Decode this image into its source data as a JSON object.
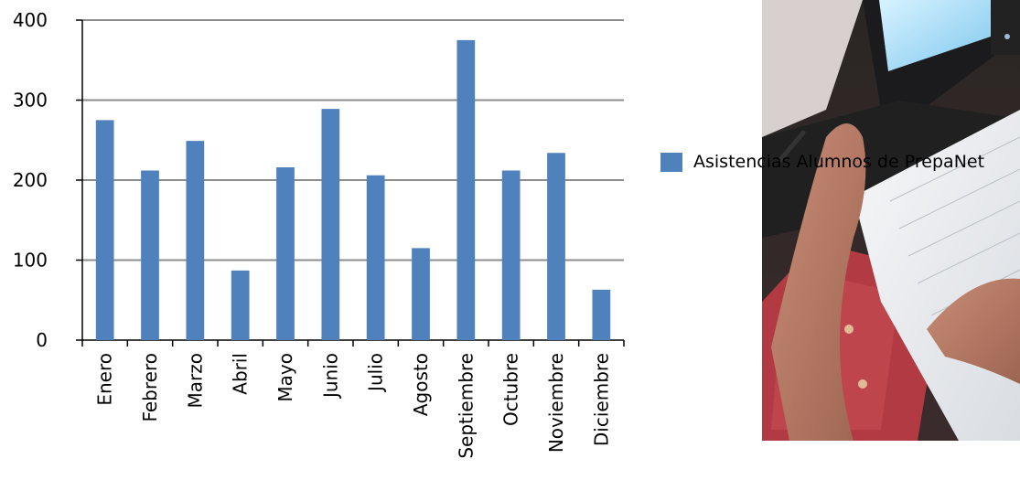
{
  "chart_data": {
    "type": "bar",
    "categories": [
      "Enero",
      "Febrero",
      "Marzo",
      "Abril",
      "Mayo",
      "Junio",
      "Julio",
      "Agosto",
      "Septiembre",
      "Octubre",
      "Noviembre",
      "Diciembre"
    ],
    "series": [
      {
        "name": "Asistencias Alumnos de PrepaNet",
        "values": [
          275,
          212,
          249,
          87,
          216,
          289,
          206,
          115,
          375,
          212,
          234,
          63
        ]
      }
    ],
    "ylim": [
      0,
      400
    ],
    "yticks": [
      0,
      100,
      200,
      300,
      400
    ],
    "grid": true,
    "legend": "right",
    "bar_color": "#4f81bd"
  },
  "photo": {
    "description_icon": "student-photo-image"
  }
}
